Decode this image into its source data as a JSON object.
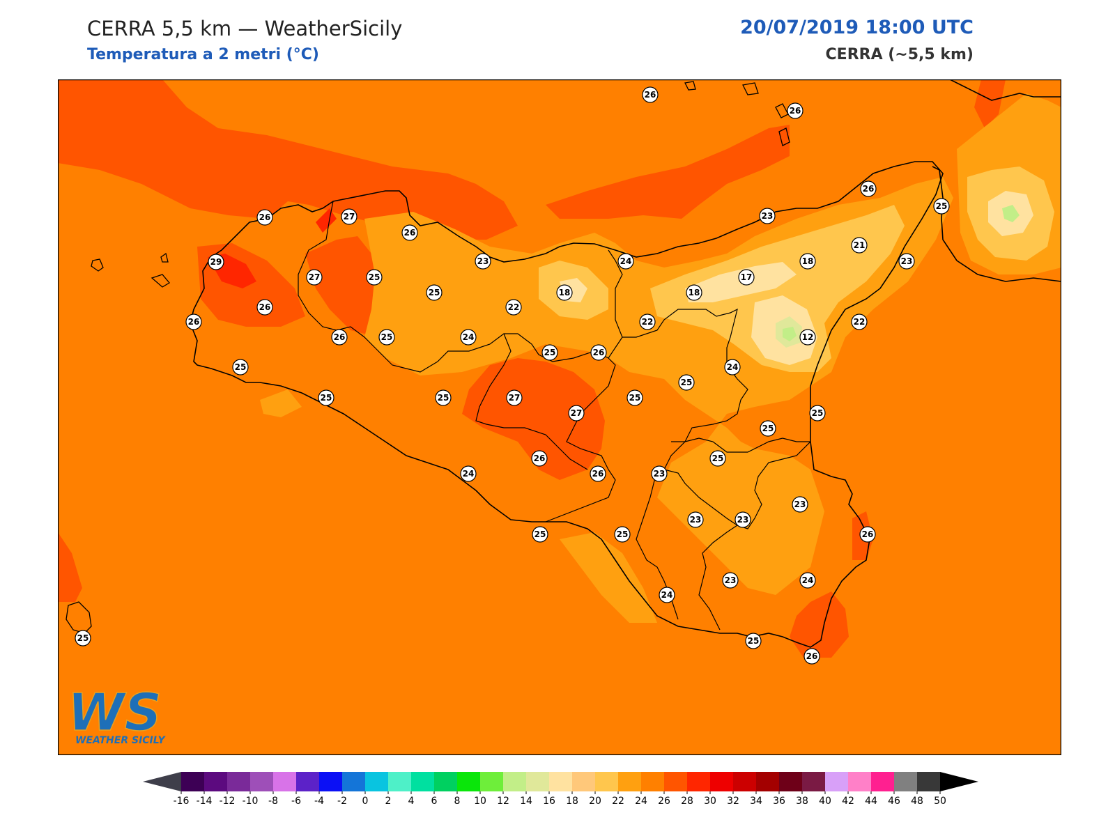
{
  "header": {
    "title": "CERRA 5,5 km — WeatherSicily",
    "subtitle": "Temperatura a 2 metri (°C)",
    "datetime": "20/07/2019 18:00 UTC",
    "model": "CERRA (~5,5 km)"
  },
  "logo": {
    "mark": "WS",
    "text": "WEATHER SICILY"
  },
  "colors": {
    "background_field": "#ff8000",
    "warm_band": "#ff5500",
    "hot_core": "#ff2600",
    "mild": "#ffa010",
    "cooler": "#ffc64d",
    "cool": "#ffe2a0",
    "coolest": "#d4e89a",
    "station_fill": "#ffffff",
    "station_stroke": "#000000"
  },
  "stations": [
    {
      "value": "26"
    },
    {
      "value": "26"
    },
    {
      "value": "26"
    },
    {
      "value": "25"
    },
    {
      "value": "26"
    },
    {
      "value": "27"
    },
    {
      "value": "26"
    },
    {
      "value": "29"
    },
    {
      "value": "27"
    },
    {
      "value": "25"
    },
    {
      "value": "25"
    },
    {
      "value": "23"
    },
    {
      "value": "24"
    },
    {
      "value": "23"
    },
    {
      "value": "18"
    },
    {
      "value": "21"
    },
    {
      "value": "17"
    },
    {
      "value": "18"
    },
    {
      "value": "18"
    },
    {
      "value": "23"
    },
    {
      "value": "26"
    },
    {
      "value": "22"
    },
    {
      "value": "26"
    },
    {
      "value": "22"
    },
    {
      "value": "22"
    },
    {
      "value": "12"
    },
    {
      "value": "26"
    },
    {
      "value": "25"
    },
    {
      "value": "24"
    },
    {
      "value": "25"
    },
    {
      "value": "26"
    },
    {
      "value": "24"
    },
    {
      "value": "25"
    },
    {
      "value": "25"
    },
    {
      "value": "25"
    },
    {
      "value": "25"
    },
    {
      "value": "27"
    },
    {
      "value": "27"
    },
    {
      "value": "25"
    },
    {
      "value": "25"
    },
    {
      "value": "25"
    },
    {
      "value": "26"
    },
    {
      "value": "26"
    },
    {
      "value": "23"
    },
    {
      "value": "25"
    },
    {
      "value": "24"
    },
    {
      "value": "23"
    },
    {
      "value": "23"
    },
    {
      "value": "23"
    },
    {
      "value": "25"
    },
    {
      "value": "25"
    },
    {
      "value": "26"
    },
    {
      "value": "24"
    },
    {
      "value": "23"
    },
    {
      "value": "24"
    },
    {
      "value": "25"
    },
    {
      "value": "26"
    },
    {
      "value": "25"
    }
  ],
  "colorbar": {
    "ticks": [
      "-16",
      "-14",
      "-12",
      "-10",
      "-8",
      "-6",
      "-4",
      "-2",
      "0",
      "2",
      "4",
      "6",
      "8",
      "10",
      "12",
      "14",
      "16",
      "18",
      "20",
      "22",
      "24",
      "26",
      "28",
      "30",
      "32",
      "34",
      "36",
      "38",
      "40",
      "42",
      "44",
      "46",
      "48",
      "50"
    ],
    "colors": [
      "#3d0055",
      "#5c0a7f",
      "#7a2a99",
      "#9e4fb8",
      "#d873e8",
      "#5c22c8",
      "#0b10f5",
      "#1475d8",
      "#09c4e0",
      "#4ef0c8",
      "#00e0a0",
      "#00d060",
      "#0ae60a",
      "#6eee3a",
      "#c2ee88",
      "#e0e89a",
      "#ffe2a0",
      "#ffc87a",
      "#ffc64d",
      "#ffa010",
      "#ff8000",
      "#ff5500",
      "#ff2600",
      "#ee0000",
      "#cc0000",
      "#a30000",
      "#6e0018",
      "#7a1a44",
      "#d8a0f8",
      "#ff80c8",
      "#ff2090",
      "#808080",
      "#383838"
    ],
    "under_color": "#3e3e4a",
    "over_color": "#000000"
  }
}
